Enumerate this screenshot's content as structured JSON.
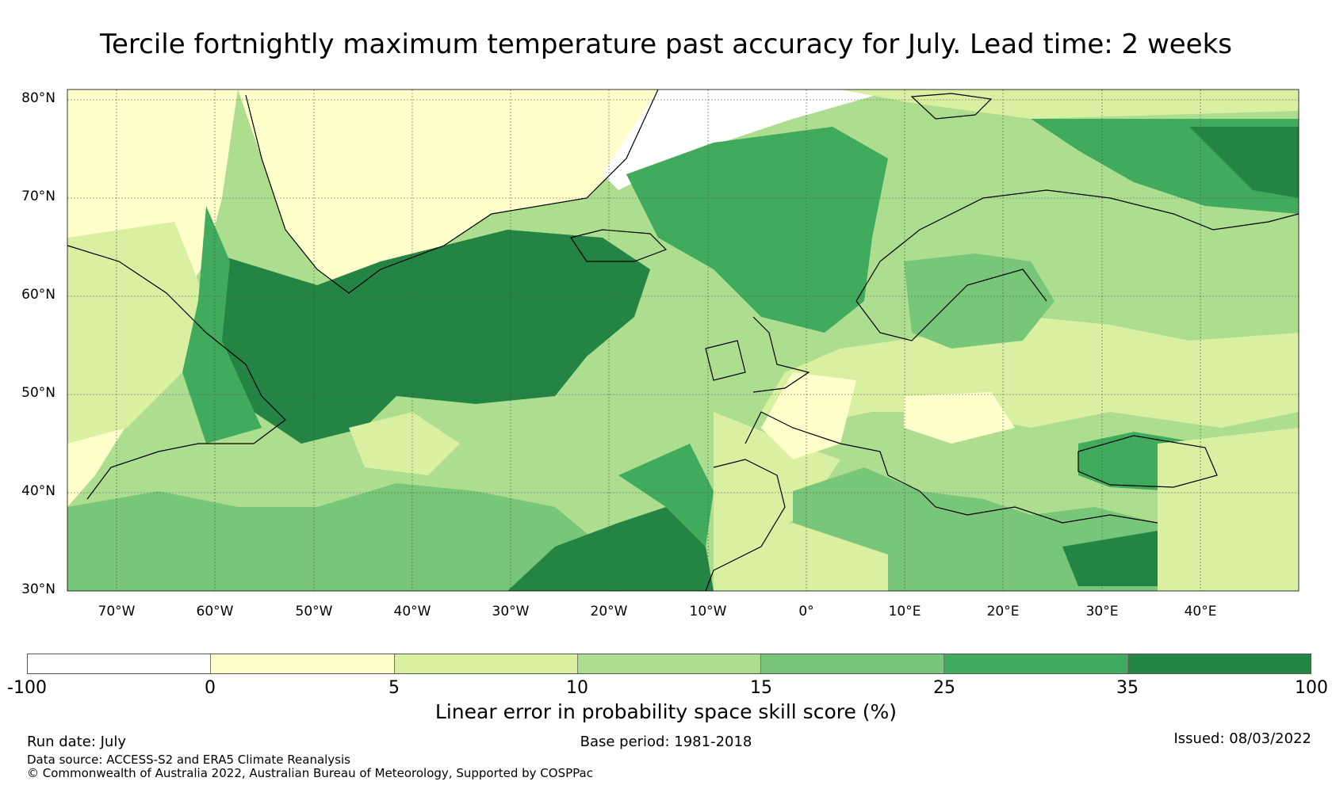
{
  "title": "Tercile fortnightly maximum temperature past accuracy for July. Lead time: 2 weeks",
  "map": {
    "lat_labels": [
      "80°N",
      "70°N",
      "60°N",
      "50°N",
      "40°N",
      "30°N"
    ],
    "lat_values": [
      80,
      70,
      60,
      50,
      40,
      30
    ],
    "lon_labels": [
      "70°W",
      "60°W",
      "50°W",
      "40°W",
      "30°W",
      "20°W",
      "10°W",
      "0°",
      "10°E",
      "20°E",
      "30°E",
      "40°E"
    ],
    "lon_values": [
      -70,
      -60,
      -50,
      -40,
      -30,
      -20,
      -10,
      0,
      10,
      20,
      30,
      40
    ],
    "lon_range": [
      -75,
      50
    ],
    "lat_range": [
      30,
      81
    ],
    "grid": true
  },
  "colorbar": {
    "ticks": [
      "-100",
      "0",
      "5",
      "10",
      "15",
      "25",
      "35",
      "100"
    ],
    "colors": [
      "#ffffff",
      "#ffffcc",
      "#d9f0a3",
      "#addd8e",
      "#78c679",
      "#41ab5d",
      "#238443"
    ],
    "label": "Linear error in probability space skill score (%)"
  },
  "footer": {
    "run_date": "Run date: July",
    "base_period": "Base period: 1981-2018",
    "issued": "Issued: 08/03/2022",
    "data_source": "Data source: ACCESS-S2 and ERA5 Climate Reanalysis",
    "copyright": "© Commonwealth of Australia 2022, Australian Bureau of Meteorology, Supported by COSPPac"
  }
}
